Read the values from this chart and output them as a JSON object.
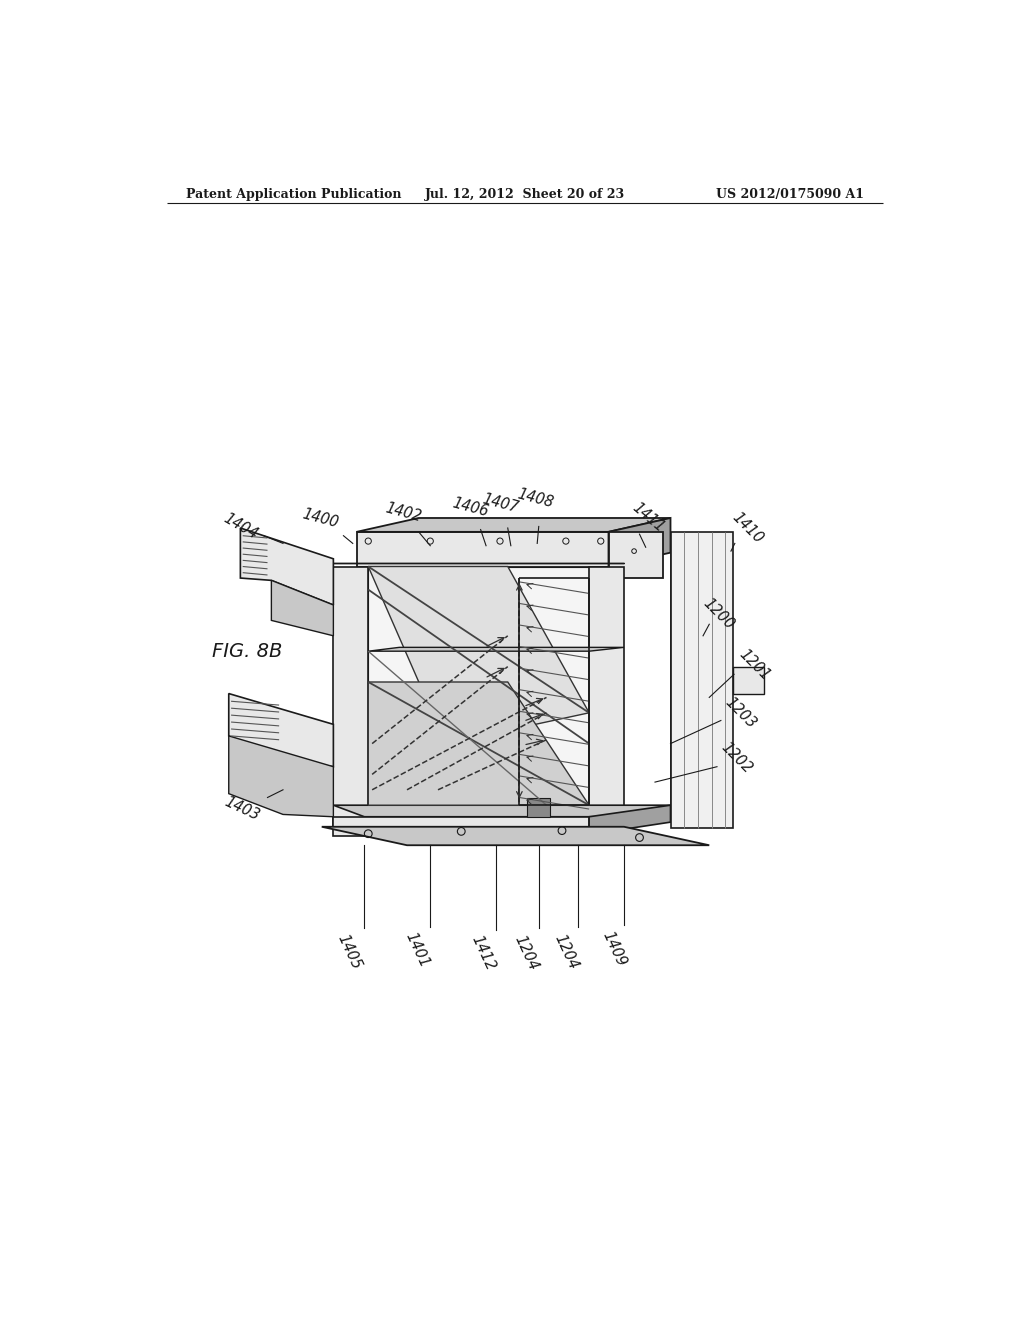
{
  "bg_color": "#ffffff",
  "line_color": "#1a1a1a",
  "header_left": "Patent Application Publication",
  "header_mid": "Jul. 12, 2012  Sheet 20 of 23",
  "header_right": "US 2012/0175090 A1",
  "fig_label": "FIG. 8B",
  "title_fontsize": 9,
  "label_fontsize": 10.5,
  "fig_label_fontsize": 14
}
